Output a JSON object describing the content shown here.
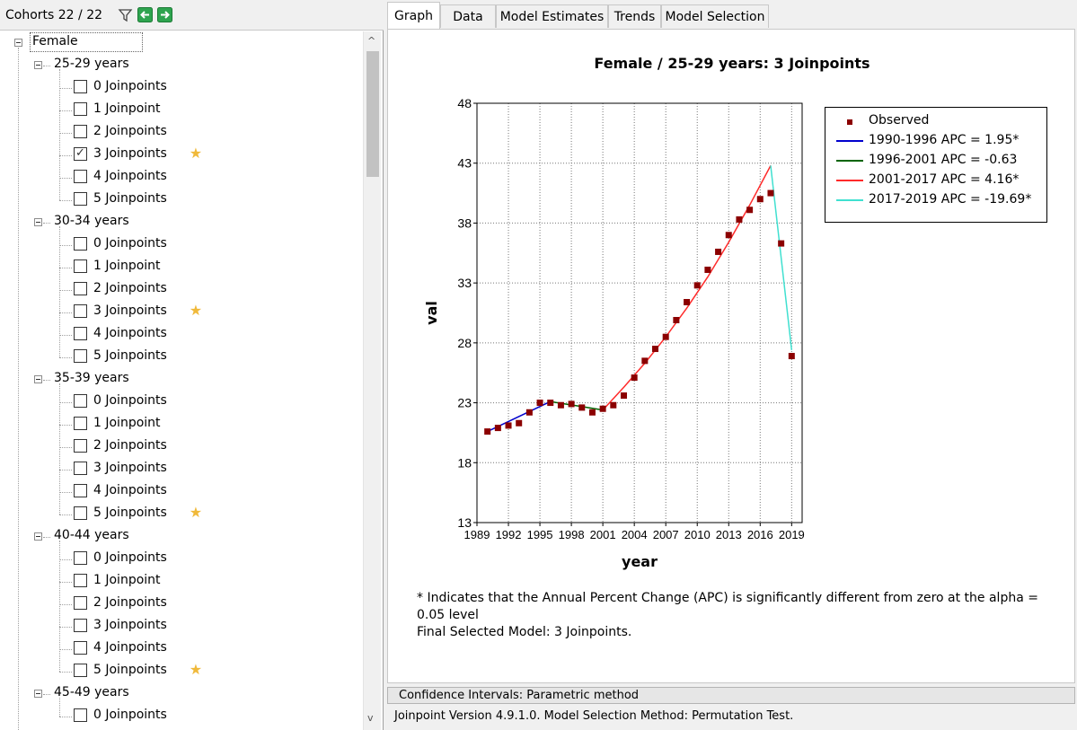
{
  "header": {
    "cohorts_label": "Cohorts 22 / 22",
    "icons": [
      "filter-icon",
      "collapse-all-icon",
      "expand-all-icon"
    ]
  },
  "tree": [
    {
      "label": "Female",
      "level": 0
    },
    {
      "label": "25-29 years",
      "level": 1
    },
    {
      "label": "0 Joinpoints",
      "level": 2,
      "checked": false,
      "star": false
    },
    {
      "label": "1 Joinpoint",
      "level": 2,
      "checked": false,
      "star": false
    },
    {
      "label": "2 Joinpoints",
      "level": 2,
      "checked": false,
      "star": false
    },
    {
      "label": "3 Joinpoints",
      "level": 2,
      "checked": true,
      "star": true
    },
    {
      "label": "4 Joinpoints",
      "level": 2,
      "checked": false,
      "star": false
    },
    {
      "label": "5 Joinpoints",
      "level": 2,
      "checked": false,
      "star": false
    },
    {
      "label": "30-34 years",
      "level": 1
    },
    {
      "label": "0 Joinpoints",
      "level": 2,
      "checked": false,
      "star": false
    },
    {
      "label": "1 Joinpoint",
      "level": 2,
      "checked": false,
      "star": false
    },
    {
      "label": "2 Joinpoints",
      "level": 2,
      "checked": false,
      "star": false
    },
    {
      "label": "3 Joinpoints",
      "level": 2,
      "checked": false,
      "star": true
    },
    {
      "label": "4 Joinpoints",
      "level": 2,
      "checked": false,
      "star": false
    },
    {
      "label": "5 Joinpoints",
      "level": 2,
      "checked": false,
      "star": false
    },
    {
      "label": "35-39 years",
      "level": 1
    },
    {
      "label": "0 Joinpoints",
      "level": 2,
      "checked": false,
      "star": false
    },
    {
      "label": "1 Joinpoint",
      "level": 2,
      "checked": false,
      "star": false
    },
    {
      "label": "2 Joinpoints",
      "level": 2,
      "checked": false,
      "star": false
    },
    {
      "label": "3 Joinpoints",
      "level": 2,
      "checked": false,
      "star": false
    },
    {
      "label": "4 Joinpoints",
      "level": 2,
      "checked": false,
      "star": false
    },
    {
      "label": "5 Joinpoints",
      "level": 2,
      "checked": false,
      "star": true
    },
    {
      "label": "40-44 years",
      "level": 1
    },
    {
      "label": "0 Joinpoints",
      "level": 2,
      "checked": false,
      "star": false
    },
    {
      "label": "1 Joinpoint",
      "level": 2,
      "checked": false,
      "star": false
    },
    {
      "label": "2 Joinpoints",
      "level": 2,
      "checked": false,
      "star": false
    },
    {
      "label": "3 Joinpoints",
      "level": 2,
      "checked": false,
      "star": false
    },
    {
      "label": "4 Joinpoints",
      "level": 2,
      "checked": false,
      "star": false
    },
    {
      "label": "5 Joinpoints",
      "level": 2,
      "checked": false,
      "star": true
    },
    {
      "label": "45-49 years",
      "level": 1
    },
    {
      "label": "0 Joinpoints",
      "level": 2,
      "checked": false,
      "star": false
    }
  ],
  "tabs": [
    "Graph",
    "Data",
    "Model Estimates",
    "Trends",
    "Model Selection"
  ],
  "active_tab": "Graph",
  "colors": {
    "observed": "#8b0000",
    "seg1": "#0000cd",
    "seg2": "#006400",
    "seg3": "#ff2a2a",
    "seg4": "#40e0d0",
    "star": "#f0b93a"
  },
  "chart_data": {
    "type": "scatter",
    "title": "Female / 25-29 years: 3 Joinpoints",
    "xlabel": "year",
    "ylabel": "val",
    "xlim": [
      1989,
      2020
    ],
    "ylim": [
      13,
      48
    ],
    "xticks": [
      1989,
      1992,
      1995,
      1998,
      2001,
      2004,
      2007,
      2010,
      2013,
      2016,
      2019
    ],
    "yticks": [
      13,
      18,
      23,
      28,
      33,
      38,
      43,
      48
    ],
    "grid": true,
    "legend_position": "top-right",
    "observed": {
      "name": "Observed",
      "x": [
        1990,
        1991,
        1992,
        1993,
        1994,
        1995,
        1996,
        1997,
        1998,
        1999,
        2000,
        2001,
        2002,
        2003,
        2004,
        2005,
        2006,
        2007,
        2008,
        2009,
        2010,
        2011,
        2012,
        2013,
        2014,
        2015,
        2016,
        2017,
        2018,
        2019
      ],
      "y": [
        20.6,
        20.9,
        21.1,
        21.3,
        22.2,
        23.0,
        23.0,
        22.8,
        22.9,
        22.6,
        22.2,
        22.5,
        22.8,
        23.6,
        25.1,
        26.5,
        27.5,
        28.5,
        29.9,
        31.4,
        32.8,
        34.1,
        35.6,
        37.0,
        38.3,
        39.1,
        40.0,
        40.5,
        36.3,
        26.9
      ]
    },
    "series": [
      {
        "name": "1990-1996 APC =  1.95*",
        "x": [
          1990,
          1996
        ],
        "y": [
          20.6,
          23.1
        ]
      },
      {
        "name": "1996-2001 APC = -0.63",
        "x": [
          1996,
          2001
        ],
        "y": [
          23.1,
          22.4
        ]
      },
      {
        "name": "2001-2017 APC =  4.16*",
        "x": [
          2001,
          2003,
          2005,
          2007,
          2009,
          2011,
          2013,
          2015,
          2017
        ],
        "y": [
          22.4,
          24.3,
          26.3,
          28.5,
          30.9,
          33.5,
          36.4,
          39.5,
          42.8
        ]
      },
      {
        "name": "2017-2019 APC = -19.69*",
        "x": [
          2017,
          2019
        ],
        "y": [
          42.8,
          27.4
        ]
      }
    ]
  },
  "footnote": {
    "line1": "* Indicates that the Annual Percent Change (APC) is significantly different from zero at the alpha =",
    "line2": "0.05 level",
    "line3": "Final Selected Model: 3 Joinpoints."
  },
  "ci_bar": "Confidence Intervals:  Parametric method",
  "status": "Joinpoint Version 4.9.1.0.   Model Selection Method: Permutation Test."
}
